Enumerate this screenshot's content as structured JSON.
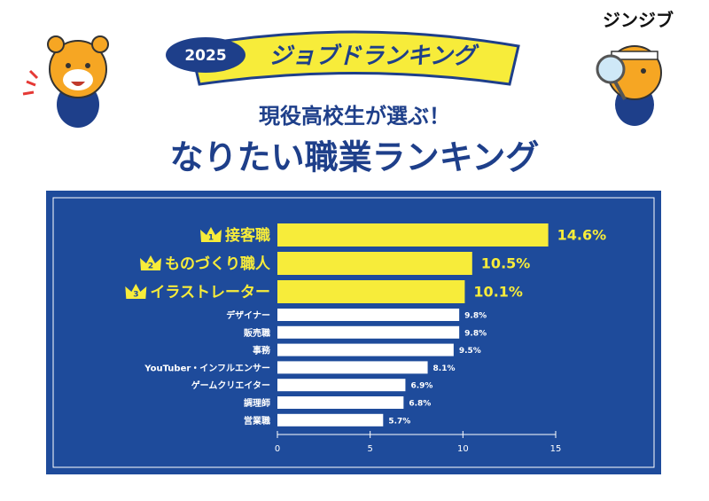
{
  "brand": "ジンジブ",
  "banner": {
    "year": "2025",
    "title": "ジョブドランキング"
  },
  "subtitle": "現役高校生が選ぶ！",
  "chart_data": {
    "type": "bar",
    "orientation": "horizontal",
    "title": "なりたい職業ランキング",
    "categories": [
      "接客職",
      "ものづくり職人",
      "イラストレーター",
      "デザイナー",
      "販売職",
      "事務",
      "YouTuber・インフルエンサー",
      "ゲームクリエイター",
      "調理師",
      "営業職"
    ],
    "values": [
      14.6,
      10.5,
      10.1,
      9.8,
      9.8,
      9.5,
      8.1,
      6.9,
      6.8,
      5.7
    ],
    "value_labels": [
      "14.6%",
      "10.5%",
      "10.1%",
      "9.8%",
      "9.8%",
      "9.5%",
      "8.1%",
      "6.9%",
      "6.8%",
      "5.7%"
    ],
    "colors": [
      "#f7ec3a",
      "#f7ec3a",
      "#f7ec3a",
      "#ffffff",
      "#ffffff",
      "#ffffff",
      "#ffffff",
      "#ffffff",
      "#ffffff",
      "#ffffff"
    ],
    "ranks": [
      1,
      2,
      3
    ],
    "xlim": [
      0,
      15
    ],
    "xticks": [
      0,
      5,
      10,
      15
    ]
  }
}
